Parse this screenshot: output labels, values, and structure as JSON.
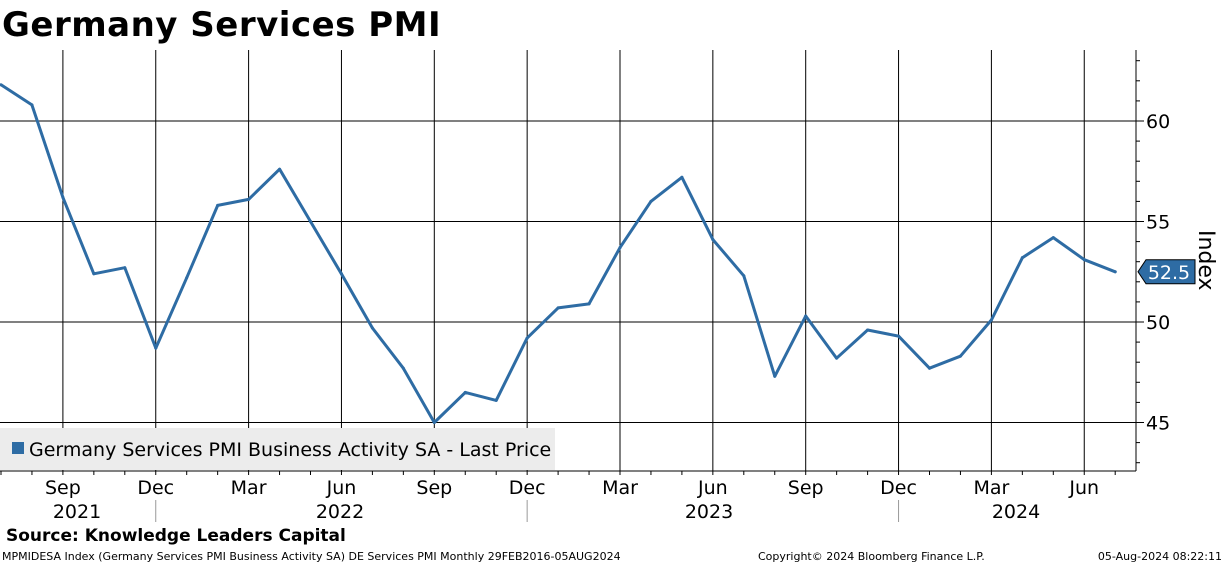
{
  "title": "Germany Services PMI",
  "source_note": "Source: Knowledge Leaders Capital",
  "footer": {
    "description": "MPMIDESA Index (Germany Services PMI Business Activity SA) DE Services PMI  Monthly 29FEB2016-05AUG2024",
    "copyright": "Copyright© 2024 Bloomberg Finance L.P.",
    "timestamp": "05-Aug-2024 08:22:11"
  },
  "colors": {
    "series": "#2e6ca4",
    "grid": "#000000",
    "legend_bg": "#ececec"
  },
  "chart_data": {
    "type": "line",
    "title": "Germany Services PMI",
    "ylabel": "Index",
    "ylim": [
      42.5,
      63.5
    ],
    "yticks": [
      45,
      50,
      55,
      60
    ],
    "grid": true,
    "legend_position": "bottom-left",
    "last_value_label": "52.5",
    "x_tick_months": [
      "Sep",
      "Dec",
      "Mar",
      "Jun",
      "Sep",
      "Dec",
      "Mar",
      "Jun",
      "Sep",
      "Dec",
      "Mar",
      "Jun"
    ],
    "x_tick_years": [
      "2021",
      "2022",
      "2023",
      "2024"
    ],
    "series": [
      {
        "name": "Germany Services PMI Business Activity SA - Last Price",
        "x": [
          "2021-07",
          "2021-08",
          "2021-09",
          "2021-10",
          "2021-11",
          "2021-12",
          "2022-01",
          "2022-02",
          "2022-03",
          "2022-04",
          "2022-05",
          "2022-06",
          "2022-07",
          "2022-08",
          "2022-09",
          "2022-10",
          "2022-11",
          "2022-12",
          "2023-01",
          "2023-02",
          "2023-03",
          "2023-04",
          "2023-05",
          "2023-06",
          "2023-07",
          "2023-08",
          "2023-09",
          "2023-10",
          "2023-11",
          "2023-12",
          "2024-01",
          "2024-02",
          "2024-03",
          "2024-04",
          "2024-05",
          "2024-06",
          "2024-07"
        ],
        "values": [
          61.8,
          60.8,
          56.2,
          52.4,
          52.7,
          48.7,
          52.2,
          55.8,
          56.1,
          57.6,
          55.0,
          52.4,
          49.7,
          47.7,
          45.0,
          46.5,
          46.1,
          49.2,
          50.7,
          50.9,
          53.7,
          56.0,
          57.2,
          54.1,
          52.3,
          47.3,
          50.3,
          48.2,
          49.6,
          49.3,
          47.7,
          48.3,
          50.1,
          53.2,
          54.2,
          53.1,
          52.5
        ]
      }
    ]
  }
}
